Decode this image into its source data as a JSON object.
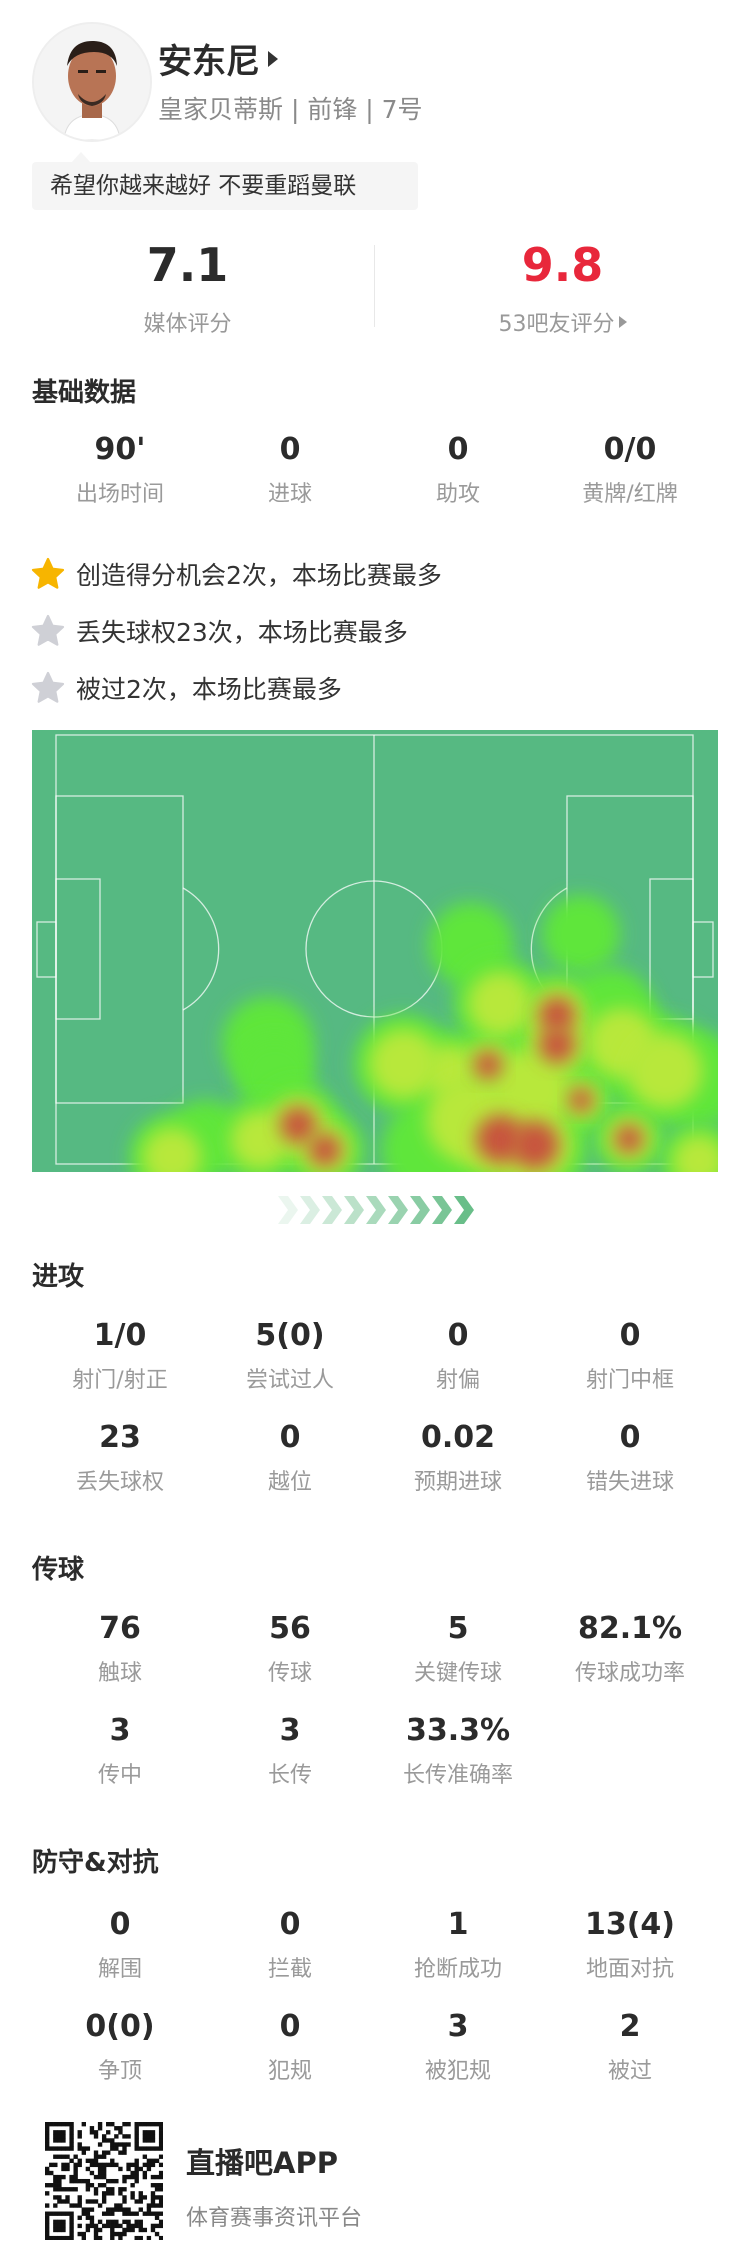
{
  "player": {
    "name": "安东尼",
    "subtitle": "皇家贝蒂斯 | 前锋 | 7号",
    "comment": "希望你越来越好 不要重蹈曼联"
  },
  "ratings": {
    "media": {
      "value": "7.1",
      "label": "媒体评分"
    },
    "fans": {
      "value": "9.8",
      "label": "53吧友评分",
      "color": "#e8273b"
    }
  },
  "basic": {
    "title": "基础数据",
    "stats": [
      {
        "value": "90'",
        "label": "出场时间"
      },
      {
        "value": "0",
        "label": "进球"
      },
      {
        "value": "0",
        "label": "助攻"
      },
      {
        "value": "0/0",
        "label": "黄牌/红牌"
      }
    ]
  },
  "highlights": [
    {
      "text": "创造得分机会2次，本场比赛最多",
      "icon": "star-gold-icon",
      "color": "#f7b500"
    },
    {
      "text": "丢失球权23次，本场比赛最多",
      "icon": "star-gray-icon",
      "color": "#cfd0d6"
    },
    {
      "text": "被过2次，本场比赛最多",
      "icon": "star-gray-icon",
      "color": "#cfd0d6"
    }
  ],
  "heatmap": {
    "pitch_color": "#56b982",
    "attack_direction": "right"
  },
  "attack": {
    "title": "进攻",
    "stats": [
      {
        "value": "1/0",
        "label": "射门/射正"
      },
      {
        "value": "5(0)",
        "label": "尝试过人"
      },
      {
        "value": "0",
        "label": "射偏"
      },
      {
        "value": "0",
        "label": "射门中框"
      },
      {
        "value": "23",
        "label": "丢失球权"
      },
      {
        "value": "0",
        "label": "越位"
      },
      {
        "value": "0.02",
        "label": "预期进球"
      },
      {
        "value": "0",
        "label": "错失进球"
      }
    ]
  },
  "passing": {
    "title": "传球",
    "stats": [
      {
        "value": "76",
        "label": "触球"
      },
      {
        "value": "56",
        "label": "传球"
      },
      {
        "value": "5",
        "label": "关键传球"
      },
      {
        "value": "82.1%",
        "label": "传球成功率"
      },
      {
        "value": "3",
        "label": "传中"
      },
      {
        "value": "3",
        "label": "长传"
      },
      {
        "value": "33.3%",
        "label": "长传准确率"
      }
    ]
  },
  "defense": {
    "title": "防守&对抗",
    "stats": [
      {
        "value": "0",
        "label": "解围"
      },
      {
        "value": "0",
        "label": "拦截"
      },
      {
        "value": "1",
        "label": "抢断成功"
      },
      {
        "value": "13(4)",
        "label": "地面对抗"
      },
      {
        "value": "0(0)",
        "label": "争顶"
      },
      {
        "value": "0",
        "label": "犯规"
      },
      {
        "value": "3",
        "label": "被犯规"
      },
      {
        "value": "2",
        "label": "被过"
      }
    ]
  },
  "footer": {
    "app_name": "直播吧APP",
    "tagline": "体育赛事资讯平台"
  }
}
